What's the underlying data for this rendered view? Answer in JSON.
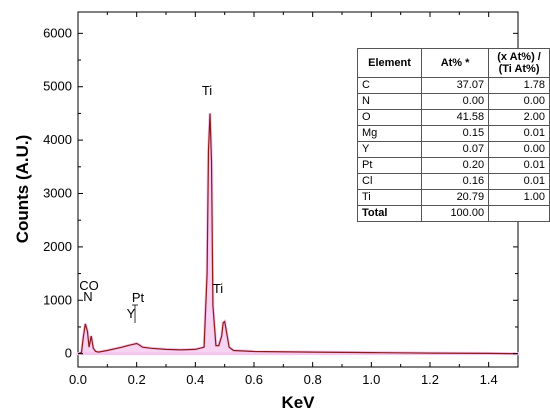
{
  "chart_data": {
    "type": "line",
    "xlabel": "KeV",
    "ylabel": "Counts (A.U.)",
    "xlim": [
      0,
      1.5
    ],
    "ylim": [
      -250,
      6400
    ],
    "xticks": [
      "0.0",
      "0.2",
      "0.4",
      "0.6",
      "0.8",
      "1.0",
      "1.2",
      "1.4"
    ],
    "yticks": [
      "0",
      "1000",
      "2000",
      "3000",
      "4000",
      "5000",
      "6000"
    ],
    "grid": false,
    "colors": {
      "line": "#8b1a1a",
      "fill": "#f4c6ee"
    },
    "series": [
      {
        "x": [
          0.0,
          0.012,
          0.018,
          0.025,
          0.032,
          0.038,
          0.045,
          0.052,
          0.06,
          0.07,
          0.1,
          0.15,
          0.17,
          0.185,
          0.2,
          0.21,
          0.22,
          0.25,
          0.3,
          0.35,
          0.4,
          0.43,
          0.44,
          0.445,
          0.45,
          0.455,
          0.46,
          0.47,
          0.48,
          0.49,
          0.495,
          0.5,
          0.505,
          0.515,
          0.53,
          0.6,
          0.8,
          1.0,
          1.2,
          1.4,
          1.5
        ],
        "y": [
          0,
          20,
          300,
          560,
          420,
          120,
          330,
          100,
          40,
          30,
          60,
          120,
          150,
          170,
          190,
          160,
          120,
          100,
          80,
          70,
          80,
          120,
          1500,
          3800,
          4500,
          3600,
          900,
          150,
          150,
          330,
          580,
          600,
          450,
          120,
          60,
          40,
          30,
          20,
          10,
          5,
          0
        ]
      }
    ],
    "annotations": [
      "CO",
      "N",
      "Pt",
      "Y",
      "Ti",
      "Ti"
    ]
  },
  "table": {
    "headers": [
      "Element",
      "At% *",
      "(x At%) / (Ti At%)"
    ],
    "rows": [
      [
        "C",
        "37.07",
        "1.78"
      ],
      [
        "N",
        "0.00",
        "0.00"
      ],
      [
        "O",
        "41.58",
        "2.00"
      ],
      [
        "Mg",
        "0.15",
        "0.01"
      ],
      [
        "Y",
        "0.07",
        "0.00"
      ],
      [
        "Pt",
        "0.20",
        "0.01"
      ],
      [
        "Cl",
        "0.16",
        "0.01"
      ],
      [
        "Ti",
        "20.79",
        "1.00"
      ],
      [
        "Total",
        "100.00",
        ""
      ]
    ]
  }
}
